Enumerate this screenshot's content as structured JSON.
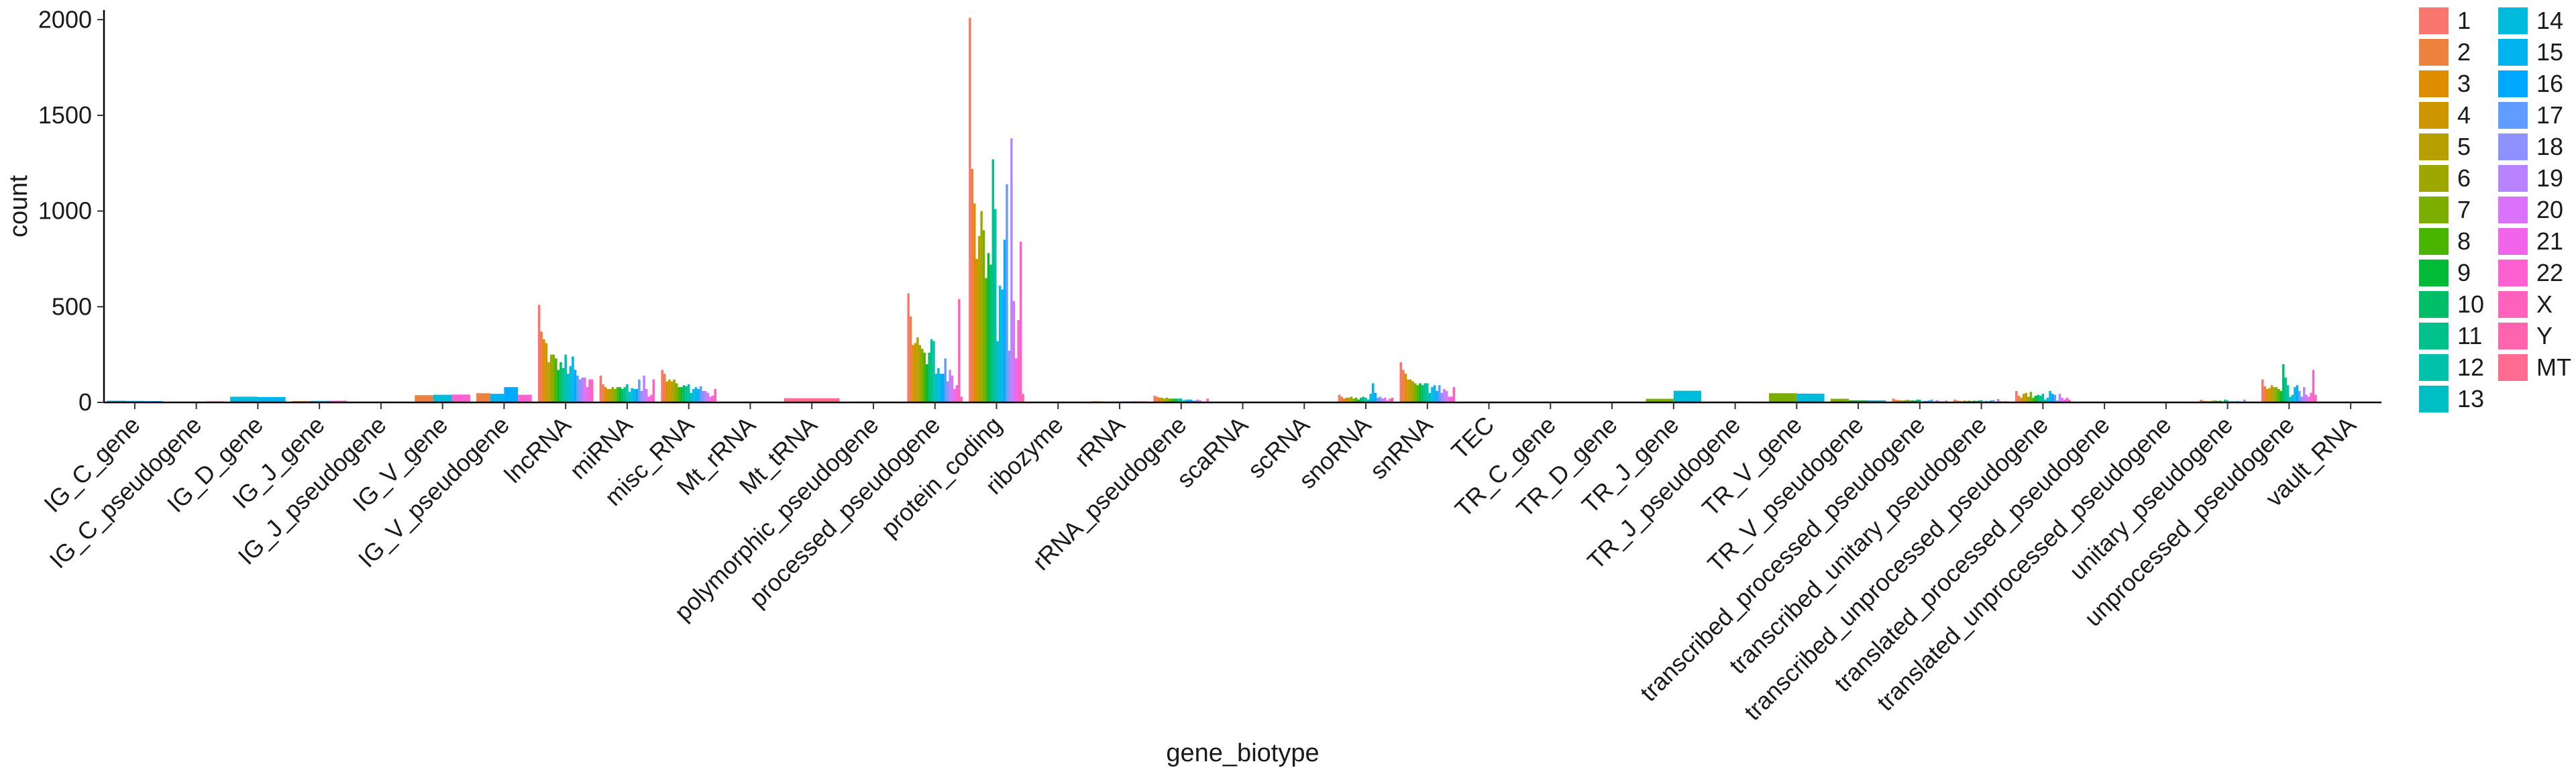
{
  "chart_data": {
    "type": "bar",
    "xlabel": "gene_biotype",
    "ylabel": "count",
    "ylim": [
      0,
      2050
    ],
    "yticks": [
      0,
      500,
      1000,
      1500,
      2000
    ],
    "grid": false,
    "legend_position": "right",
    "categories": [
      "IG_C_gene",
      "IG_C_pseudogene",
      "IG_D_gene",
      "IG_J_gene",
      "IG_J_pseudogene",
      "IG_V_gene",
      "IG_V_pseudogene",
      "lncRNA",
      "miRNA",
      "misc_RNA",
      "Mt_rRNA",
      "Mt_tRNA",
      "polymorphic_pseudogene",
      "processed_pseudogene",
      "protein_coding",
      "ribozyme",
      "rRNA",
      "rRNA_pseudogene",
      "scaRNA",
      "scRNA",
      "snoRNA",
      "snRNA",
      "TEC",
      "TR_C_gene",
      "TR_D_gene",
      "TR_J_gene",
      "TR_J_pseudogene",
      "TR_V_gene",
      "TR_V_pseudogene",
      "transcribed_processed_pseudogene",
      "transcribed_unitary_pseudogene",
      "transcribed_unprocessed_pseudogene",
      "translated_processed_pseudogene",
      "translated_unprocessed_pseudogene",
      "unitary_pseudogene",
      "unprocessed_pseudogene",
      "vault_RNA"
    ],
    "series": [
      {
        "name": "1",
        "color": "#F8766D"
      },
      {
        "name": "2",
        "color": "#ED813E"
      },
      {
        "name": "3",
        "color": "#DE8C00"
      },
      {
        "name": "4",
        "color": "#CD9600"
      },
      {
        "name": "5",
        "color": "#B79F00"
      },
      {
        "name": "6",
        "color": "#9DA700"
      },
      {
        "name": "7",
        "color": "#7CAE00"
      },
      {
        "name": "8",
        "color": "#49B500"
      },
      {
        "name": "9",
        "color": "#00BA38"
      },
      {
        "name": "10",
        "color": "#00BE67"
      },
      {
        "name": "11",
        "color": "#00C08B"
      },
      {
        "name": "12",
        "color": "#00C1A9"
      },
      {
        "name": "13",
        "color": "#00BFC4"
      },
      {
        "name": "14",
        "color": "#00BBDC"
      },
      {
        "name": "15",
        "color": "#00B4EF"
      },
      {
        "name": "16",
        "color": "#00A9FF"
      },
      {
        "name": "17",
        "color": "#619CFF"
      },
      {
        "name": "18",
        "color": "#8F91FF"
      },
      {
        "name": "19",
        "color": "#B983FF"
      },
      {
        "name": "20",
        "color": "#DB72FB"
      },
      {
        "name": "21",
        "color": "#F066EA"
      },
      {
        "name": "22",
        "color": "#FD61D1"
      },
      {
        "name": "X",
        "color": "#FF62BC"
      },
      {
        "name": "Y",
        "color": "#FF65AE"
      },
      {
        "name": "MT",
        "color": "#FF6C91"
      }
    ],
    "data": [
      {
        "category": "IG_C_gene",
        "counts": {
          "14": 9,
          "15": 8,
          "16": 7
        }
      },
      {
        "category": "IG_C_pseudogene",
        "counts": {
          "14": 3,
          "15": 3,
          "22": 6
        }
      },
      {
        "category": "IG_D_gene",
        "counts": {
          "14": 30,
          "15": 28
        }
      },
      {
        "category": "IG_J_gene",
        "counts": {
          "2": 7,
          "14": 8,
          "22": 9
        }
      },
      {
        "category": "IG_J_pseudogene",
        "counts": {
          "14": 2,
          "22": 1
        }
      },
      {
        "category": "IG_V_gene",
        "counts": {
          "2": 38,
          "14": 40,
          "22": 41
        }
      },
      {
        "category": "IG_V_pseudogene",
        "counts": {
          "2": 48,
          "15": 45,
          "16": 80,
          "22": 40
        }
      },
      {
        "category": "lncRNA",
        "counts": {
          "1": 510,
          "2": 370,
          "3": 330,
          "4": 310,
          "5": 210,
          "6": 250,
          "7": 250,
          "8": 230,
          "9": 170,
          "10": 210,
          "11": 180,
          "12": 250,
          "13": 150,
          "14": 190,
          "15": 240,
          "16": 170,
          "17": 140,
          "18": 120,
          "19": 130,
          "20": 130,
          "21": 80,
          "22": 120,
          "X": 120
        }
      },
      {
        "category": "miRNA",
        "counts": {
          "1": 140,
          "2": 95,
          "3": 80,
          "4": 70,
          "5": 70,
          "6": 80,
          "7": 70,
          "8": 80,
          "9": 80,
          "10": 70,
          "11": 80,
          "12": 95,
          "13": 55,
          "14": 75,
          "15": 70,
          "16": 70,
          "17": 120,
          "18": 60,
          "19": 140,
          "20": 70,
          "21": 30,
          "22": 40,
          "X": 120
        }
      },
      {
        "category": "misc_RNA",
        "counts": {
          "1": 170,
          "2": 150,
          "3": 110,
          "4": 120,
          "5": 110,
          "6": 120,
          "7": 100,
          "8": 80,
          "9": 80,
          "10": 90,
          "11": 85,
          "12": 95,
          "13": 50,
          "14": 70,
          "15": 80,
          "16": 70,
          "17": 85,
          "18": 60,
          "19": 60,
          "20": 50,
          "21": 30,
          "22": 35,
          "X": 70
        }
      },
      {
        "category": "Mt_rRNA",
        "counts": {
          "MT": 2
        }
      },
      {
        "category": "Mt_tRNA",
        "counts": {
          "MT": 22
        }
      },
      {
        "category": "polymorphic_pseudogene",
        "counts": {
          "1": 3,
          "3": 4,
          "5": 5,
          "9": 4,
          "11": 3,
          "15": 3,
          "19": 3,
          "22": 2
        }
      },
      {
        "category": "processed_pseudogene",
        "counts": {
          "1": 570,
          "2": 450,
          "3": 300,
          "4": 310,
          "5": 340,
          "6": 300,
          "7": 280,
          "8": 260,
          "9": 200,
          "10": 260,
          "11": 330,
          "12": 320,
          "13": 150,
          "14": 180,
          "15": 150,
          "16": 150,
          "17": 230,
          "18": 110,
          "19": 170,
          "20": 140,
          "21": 70,
          "22": 90,
          "X": 540,
          "Y": 30
        }
      },
      {
        "category": "protein_coding",
        "counts": {
          "1": 2010,
          "2": 1220,
          "3": 1040,
          "4": 750,
          "5": 870,
          "6": 1000,
          "7": 900,
          "8": 650,
          "9": 780,
          "10": 720,
          "11": 1270,
          "12": 1010,
          "13": 320,
          "14": 610,
          "15": 590,
          "16": 850,
          "17": 1140,
          "18": 270,
          "19": 1380,
          "20": 530,
          "21": 230,
          "22": 430,
          "X": 840,
          "Y": 45
        }
      },
      {
        "category": "ribozyme",
        "counts": {
          "1": 2,
          "5": 2,
          "9": 1,
          "15": 2,
          "19": 1
        }
      },
      {
        "category": "rRNA",
        "counts": {
          "1": 6,
          "5": 5,
          "9": 4,
          "13": 4,
          "17": 5,
          "21": 6,
          "X": 6
        }
      },
      {
        "category": "rRNA_pseudogene",
        "counts": {
          "1": 35,
          "2": 30,
          "3": 25,
          "4": 25,
          "5": 20,
          "6": 25,
          "7": 20,
          "8": 20,
          "9": 20,
          "10": 20,
          "11": 20,
          "12": 20,
          "13": 10,
          "14": 15,
          "15": 15,
          "16": 15,
          "17": 10,
          "18": 10,
          "19": 15,
          "20": 10,
          "21": 5,
          "22": 5,
          "X": 20
        }
      },
      {
        "category": "scaRNA",
        "counts": {
          "1": 3,
          "2": 2,
          "3": 2,
          "5": 2,
          "9": 1,
          "11": 2,
          "17": 2,
          "X": 2
        }
      },
      {
        "category": "scRNA",
        "counts": {
          "1": 1,
          "17": 1
        }
      },
      {
        "category": "snoRNA",
        "counts": {
          "1": 40,
          "2": 30,
          "3": 20,
          "4": 25,
          "5": 25,
          "6": 30,
          "7": 20,
          "8": 25,
          "9": 15,
          "10": 25,
          "11": 30,
          "12": 25,
          "13": 15,
          "14": 45,
          "15": 100,
          "16": 50,
          "17": 25,
          "18": 30,
          "19": 20,
          "20": 25,
          "21": 10,
          "22": 20,
          "X": 25
        }
      },
      {
        "category": "snRNA",
        "counts": {
          "1": 210,
          "2": 170,
          "3": 150,
          "4": 120,
          "5": 120,
          "6": 110,
          "7": 100,
          "8": 90,
          "9": 100,
          "10": 90,
          "11": 100,
          "12": 100,
          "13": 50,
          "14": 80,
          "15": 90,
          "16": 60,
          "17": 90,
          "18": 50,
          "19": 70,
          "20": 60,
          "21": 30,
          "22": 30,
          "X": 80
        }
      },
      {
        "category": "TEC",
        "counts": {
          "1": 3,
          "2": 3,
          "3": 2,
          "5": 3,
          "9": 2,
          "12": 3,
          "17": 2,
          "X": 2
        }
      },
      {
        "category": "TR_C_gene",
        "counts": {
          "7": 3,
          "14": 3
        }
      },
      {
        "category": "TR_D_gene",
        "counts": {
          "7": 2,
          "14": 2
        }
      },
      {
        "category": "TR_J_gene",
        "counts": {
          "7": 19,
          "14": 61
        }
      },
      {
        "category": "TR_J_pseudogene",
        "counts": {
          "7": 4,
          "14": 3
        }
      },
      {
        "category": "TR_V_gene",
        "counts": {
          "7": 48,
          "14": 46
        }
      },
      {
        "category": "TR_V_pseudogene",
        "counts": {
          "7": 19,
          "9": 11,
          "14": 11
        }
      },
      {
        "category": "transcribed_processed_pseudogene",
        "counts": {
          "1": 20,
          "2": 15,
          "3": 12,
          "4": 12,
          "5": 10,
          "6": 12,
          "7": 14,
          "8": 10,
          "9": 11,
          "10": 10,
          "11": 15,
          "12": 14,
          "13": 5,
          "14": 8,
          "15": 8,
          "16": 10,
          "17": 15,
          "18": 5,
          "19": 12,
          "20": 8,
          "21": 3,
          "22": 6,
          "X": 10
        }
      },
      {
        "category": "transcribed_unitary_pseudogene",
        "counts": {
          "1": 15,
          "2": 10,
          "3": 8,
          "4": 6,
          "5": 10,
          "6": 8,
          "7": 10,
          "8": 7,
          "9": 9,
          "10": 8,
          "11": 10,
          "12": 12,
          "13": 4,
          "14": 8,
          "15": 6,
          "16": 10,
          "17": 12,
          "18": 5,
          "19": 18,
          "20": 6,
          "21": 4,
          "22": 6,
          "X": 5
        }
      },
      {
        "category": "transcribed_unprocessed_pseudogene",
        "counts": {
          "1": 60,
          "2": 35,
          "3": 25,
          "4": 45,
          "5": 50,
          "6": 30,
          "7": 55,
          "8": 25,
          "9": 35,
          "10": 40,
          "11": 35,
          "12": 45,
          "13": 15,
          "14": 25,
          "15": 60,
          "16": 45,
          "17": 40,
          "18": 10,
          "19": 45,
          "20": 25,
          "21": 15,
          "22": 25,
          "X": 15
        }
      },
      {
        "category": "translated_processed_pseudogene",
        "counts": {
          "1": 1,
          "10": 1
        }
      },
      {
        "category": "translated_unprocessed_pseudogene",
        "counts": {
          "1": 1,
          "17": 1
        }
      },
      {
        "category": "unitary_pseudogene",
        "counts": {
          "1": 14,
          "2": 8,
          "3": 7,
          "4": 6,
          "5": 8,
          "6": 9,
          "7": 10,
          "8": 8,
          "9": 9,
          "10": 5,
          "11": 15,
          "12": 10,
          "13": 2,
          "14": 6,
          "15": 4,
          "16": 7,
          "17": 6,
          "18": 3,
          "19": 15,
          "20": 4,
          "21": 2,
          "22": 5,
          "X": 4
        }
      },
      {
        "category": "unprocessed_pseudogene",
        "counts": {
          "1": 120,
          "2": 85,
          "3": 70,
          "4": 75,
          "5": 90,
          "6": 80,
          "7": 80,
          "8": 70,
          "9": 60,
          "10": 200,
          "11": 130,
          "12": 90,
          "13": 30,
          "14": 40,
          "15": 80,
          "16": 90,
          "17": 60,
          "18": 30,
          "19": 80,
          "20": 40,
          "21": 30,
          "22": 50,
          "X": 170,
          "Y": 40
        }
      },
      {
        "category": "vault_RNA",
        "counts": {
          "5": 3
        }
      }
    ]
  }
}
